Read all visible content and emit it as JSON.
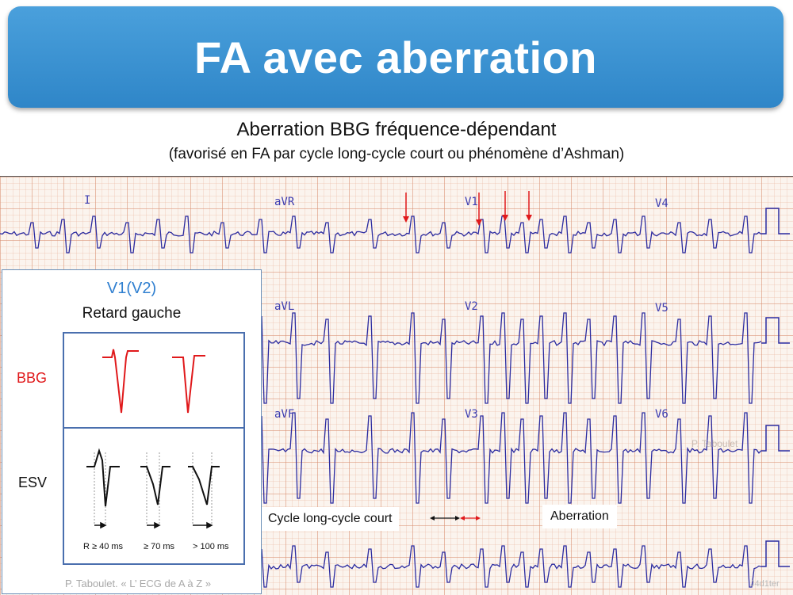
{
  "title": "FA avec aberration",
  "subtitle": "Aberration BBG fréquence-dépendant",
  "subtitle_note": "(favorisé en FA par cycle long-cycle court ou phénomène d’Ashman)",
  "ecg": {
    "leads": [
      "I",
      "aVR",
      "V1",
      "V4",
      "aVL",
      "V2",
      "V5",
      "aVF",
      "V3",
      "V6"
    ],
    "callouts": {
      "cycle": "Cycle long-cycle court",
      "aberration": "Aberration"
    },
    "watermark": "P. Taboulet",
    "code": "J4d1ter"
  },
  "inset": {
    "heading": "V1(V2)",
    "subheading": "Retard gauche",
    "row_labels": {
      "bbg": "BBG",
      "esv": "ESV"
    },
    "measures": [
      "R ≥ 40 ms",
      "≥ 70 ms",
      "> 100 ms"
    ],
    "colors": {
      "bbg": "#e0191b",
      "heading": "#2f7fd0",
      "border": "#4a6fae"
    }
  },
  "credit": "P. Taboulet. « L’ ECG de A à Z »",
  "colors": {
    "title_bar": "#3b94d6",
    "trace": "#2b2ba0",
    "arrows": "#e0191b"
  }
}
